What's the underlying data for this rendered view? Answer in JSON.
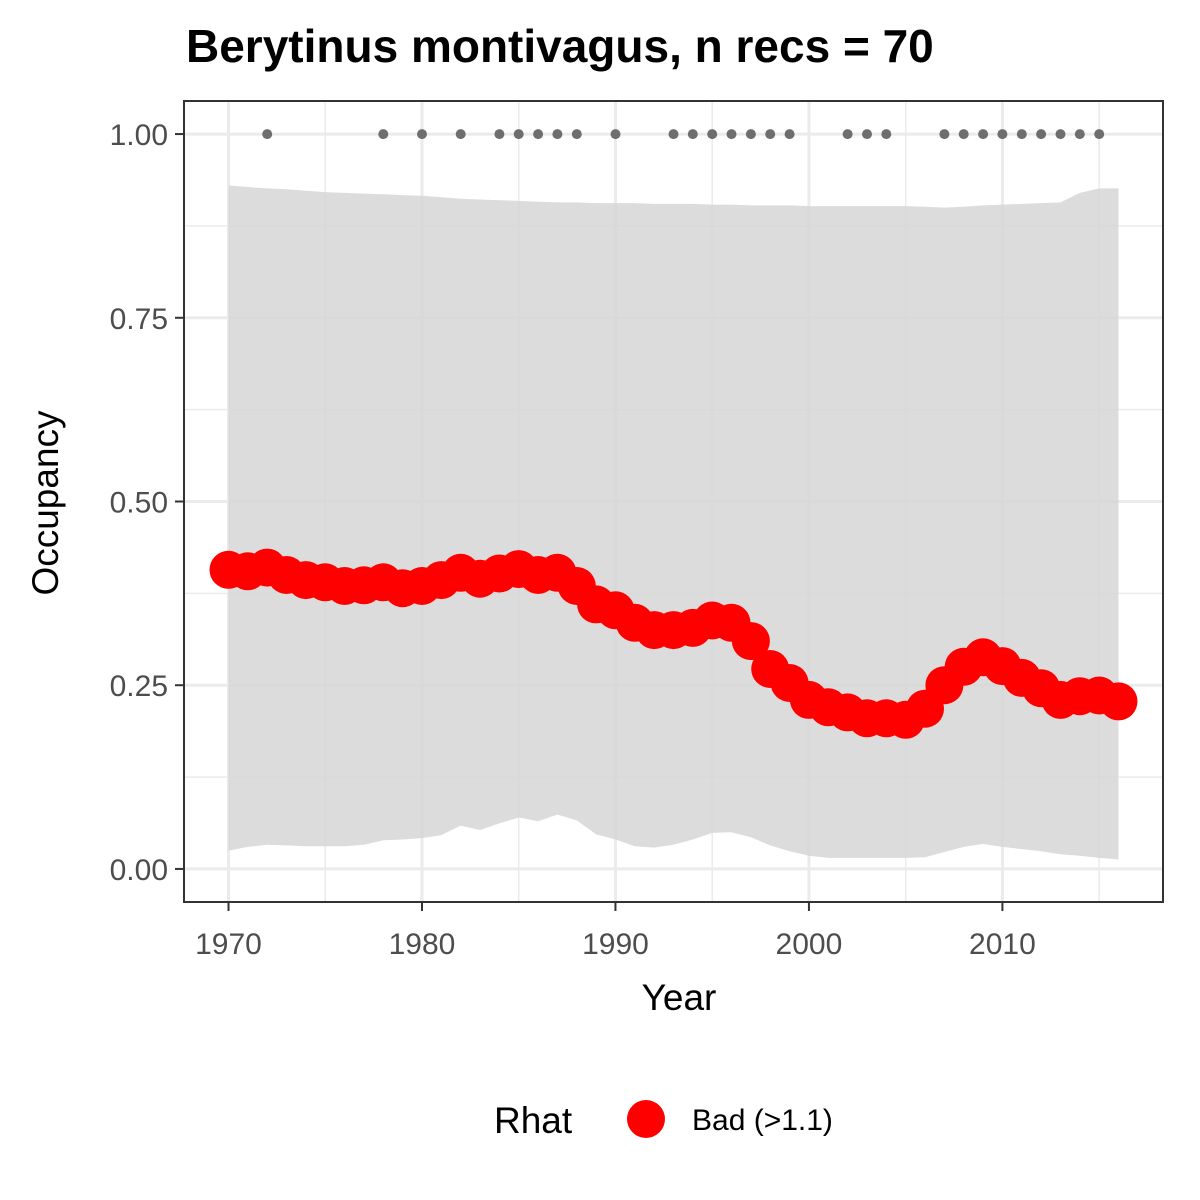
{
  "chart_data": {
    "type": "line",
    "title": "Berytinus montivagus, n recs = 70",
    "xlabel": "Year",
    "ylabel": "Occupancy",
    "xlim": [
      1967.7,
      2018.3
    ],
    "ylim": [
      -0.045,
      1.045
    ],
    "x_ticks": [
      1970,
      1980,
      1990,
      2000,
      2010
    ],
    "x_tick_labels": [
      "1970",
      "1980",
      "1990",
      "2000",
      "2010"
    ],
    "y_ticks": [
      0,
      0.25,
      0.5,
      0.75,
      1
    ],
    "y_tick_labels": [
      "0.00",
      "0.25",
      "0.50",
      "0.75",
      "1.00"
    ],
    "x_minor_ticks": [
      1975,
      1985,
      1995,
      2005,
      2015
    ],
    "y_minor_ticks": [
      0.125,
      0.375,
      0.625,
      0.875
    ],
    "grid": true,
    "legend": {
      "title": "Rhat",
      "position": "bottom",
      "entries": [
        {
          "label": "Bad (>1.1)",
          "color": "#ff0000"
        }
      ]
    },
    "colors": {
      "series": "#ff0000",
      "ribbon": "#d6d6d6",
      "records": "#6e6e6e"
    },
    "series": [
      {
        "x": [
          1970,
          1971,
          1972,
          1973,
          1974,
          1975,
          1976,
          1977,
          1978,
          1979,
          1980,
          1981,
          1982,
          1983,
          1984,
          1985,
          1986,
          1987,
          1988,
          1989,
          1990,
          1991,
          1992,
          1993,
          1994,
          1995,
          1996,
          1997,
          1998,
          1999,
          2000,
          2001,
          2002,
          2003,
          2004,
          2005,
          2006,
          2007,
          2008,
          2009,
          2010,
          2011,
          2012,
          2013,
          2014,
          2015,
          2016
        ],
        "values": [
          0.407,
          0.405,
          0.41,
          0.4,
          0.393,
          0.39,
          0.385,
          0.386,
          0.39,
          0.382,
          0.385,
          0.393,
          0.403,
          0.395,
          0.402,
          0.408,
          0.4,
          0.403,
          0.385,
          0.36,
          0.352,
          0.335,
          0.325,
          0.325,
          0.328,
          0.338,
          0.335,
          0.31,
          0.272,
          0.253,
          0.23,
          0.22,
          0.213,
          0.205,
          0.205,
          0.203,
          0.218,
          0.25,
          0.275,
          0.288,
          0.276,
          0.26,
          0.246,
          0.23,
          0.235,
          0.236,
          0.228
        ],
        "lower": [
          0.025,
          0.03,
          0.033,
          0.032,
          0.031,
          0.031,
          0.031,
          0.033,
          0.039,
          0.04,
          0.042,
          0.046,
          0.059,
          0.053,
          0.062,
          0.07,
          0.065,
          0.074,
          0.066,
          0.047,
          0.04,
          0.031,
          0.029,
          0.033,
          0.04,
          0.049,
          0.05,
          0.043,
          0.032,
          0.024,
          0.018,
          0.015,
          0.015,
          0.015,
          0.015,
          0.015,
          0.016,
          0.023,
          0.03,
          0.034,
          0.03,
          0.027,
          0.024,
          0.02,
          0.018,
          0.015,
          0.013
        ],
        "upper": [
          0.93,
          0.928,
          0.926,
          0.925,
          0.923,
          0.921,
          0.92,
          0.919,
          0.918,
          0.917,
          0.916,
          0.914,
          0.912,
          0.911,
          0.91,
          0.909,
          0.908,
          0.907,
          0.907,
          0.906,
          0.906,
          0.906,
          0.905,
          0.905,
          0.905,
          0.904,
          0.904,
          0.903,
          0.903,
          0.903,
          0.902,
          0.902,
          0.902,
          0.902,
          0.902,
          0.902,
          0.901,
          0.9,
          0.901,
          0.903,
          0.904,
          0.905,
          0.906,
          0.907,
          0.92,
          0.926,
          0.926
        ]
      }
    ],
    "record_years": [
      1972,
      1978,
      1980,
      1982,
      1984,
      1985,
      1986,
      1987,
      1988,
      1990,
      1993,
      1994,
      1995,
      1996,
      1997,
      1998,
      1999,
      2002,
      2003,
      2004,
      2007,
      2008,
      2009,
      2010,
      2011,
      2012,
      2013,
      2014,
      2015
    ],
    "record_value": 1
  }
}
